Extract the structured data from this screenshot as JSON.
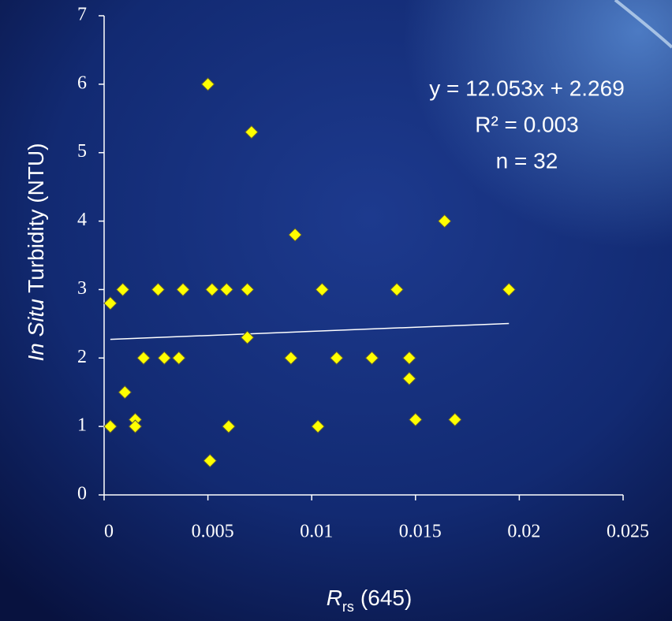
{
  "chart_data": {
    "type": "scatter",
    "x_label": {
      "symbol": "R",
      "subscript": "rs",
      "rest": "(645)"
    },
    "y_label": {
      "italic": "In Situ",
      "rest": "Turbidity (NTU)"
    },
    "annotations": [
      "y = 12.053x + 2.269",
      "R² = 0.003",
      "n = 32"
    ],
    "x": [
      0.0003,
      0.0003,
      0.0009,
      0.001,
      0.0015,
      0.0015,
      0.0019,
      0.0026,
      0.0029,
      0.0036,
      0.0038,
      0.005,
      0.0051,
      0.0052,
      0.0059,
      0.006,
      0.0069,
      0.0069,
      0.0071,
      0.009,
      0.0092,
      0.0103,
      0.0105,
      0.0112,
      0.0129,
      0.0141,
      0.0147,
      0.0147,
      0.015,
      0.0164,
      0.0169,
      0.0195
    ],
    "values": [
      1.0,
      2.8,
      3.0,
      1.5,
      1.1,
      1.0,
      2.0,
      3.0,
      2.0,
      2.0,
      3.0,
      6.0,
      0.5,
      3.0,
      3.0,
      1.0,
      3.0,
      2.3,
      5.3,
      2.0,
      3.8,
      1.0,
      3.0,
      2.0,
      2.0,
      3.0,
      2.0,
      1.7,
      1.1,
      4.0,
      1.1,
      3.0
    ],
    "color": "#ffff00",
    "trendline_color": "#ffffff",
    "xlim": [
      0,
      0.025
    ],
    "xticks": [
      0,
      0.005,
      0.01,
      0.015,
      0.02,
      0.025
    ],
    "ylim": [
      0,
      7
    ],
    "yticks": [
      0,
      1,
      2,
      3,
      4,
      5,
      6,
      7
    ]
  }
}
